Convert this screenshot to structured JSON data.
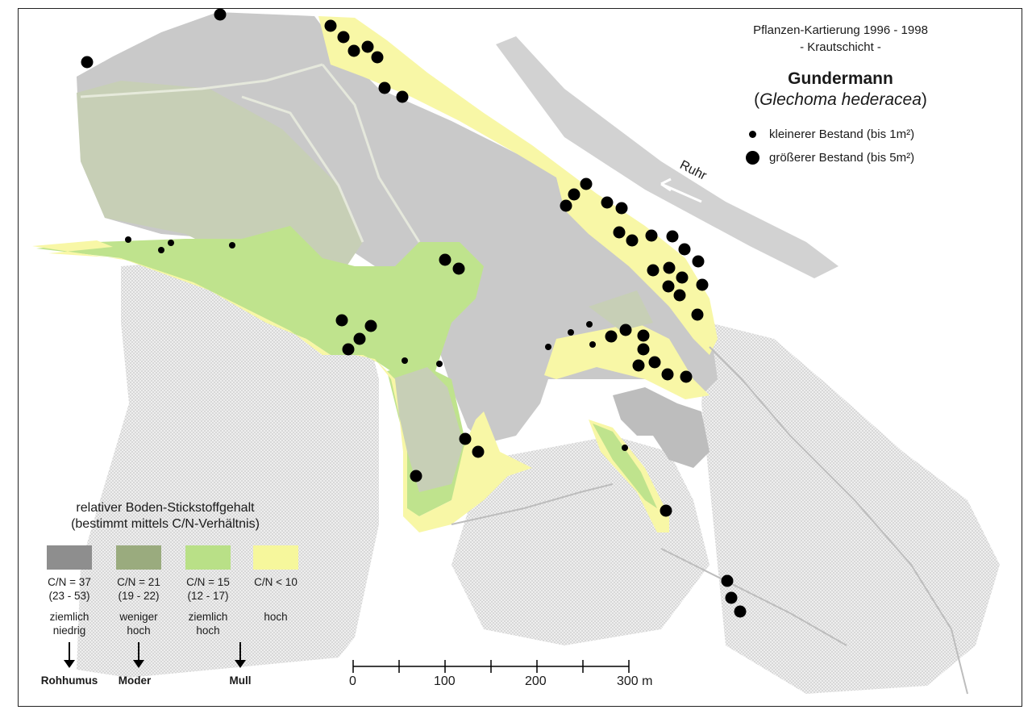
{
  "header": {
    "line1": "Pflanzen-Kartierung 1996 - 1998",
    "line2": "- Krautschicht -",
    "species": "Gundermann",
    "latin_open": "(",
    "latin": "Glechoma hederacea",
    "latin_close": ")"
  },
  "dot_legend": {
    "small": "kleinerer Bestand (bis 1m²)",
    "large": "größerer Bestand (bis 5m²)"
  },
  "river": "Ruhr",
  "nitrogen_legend": {
    "title_line1": "relativer Boden-Stickstoffgehalt",
    "title_line2": "(bestimmt mittels C/N-Verhältnis)",
    "classes": [
      {
        "color": "#8e8e8e",
        "ratio": "C/N = 37",
        "range": "(23 - 53)",
        "desc1": "ziemlich",
        "desc2": "niedrig"
      },
      {
        "color": "#9aab7e",
        "ratio": "C/N = 21",
        "range": "(19 - 22)",
        "desc1": "weniger",
        "desc2": "hoch"
      },
      {
        "color": "#b9e087",
        "ratio": "C/N = 15",
        "range": "(12 - 17)",
        "desc1": "ziemlich",
        "desc2": "hoch"
      },
      {
        "color": "#f6f79c",
        "ratio": "C/N < 10",
        "range": "",
        "desc1": "hoch",
        "desc2": ""
      }
    ],
    "humus": [
      "Rohhumus",
      "Moder",
      "Mull"
    ]
  },
  "scale": {
    "labels": [
      "0",
      "100",
      "200",
      "300 m"
    ]
  },
  "colors": {
    "gray_zone": "#c9c9c9",
    "olive_zone": "#c7cfb6",
    "green_zone": "#bfe38d",
    "yellow_zone": "#f8f7a6",
    "hatched": "#e8e8e8",
    "dot": "#000000"
  }
}
